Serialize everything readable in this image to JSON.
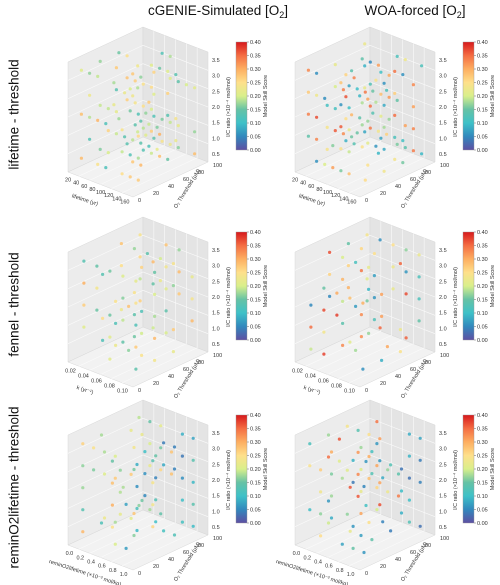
{
  "columns": [
    {
      "label": "cGENIE-Simulated [O",
      "sub": "2",
      "close": "]"
    },
    {
      "label": "WOA-forced [O",
      "sub": "2",
      "close": "]"
    }
  ],
  "rows": [
    "lifetime - threshold",
    "fennel - threshold",
    "reminO2lifetime - threshold"
  ],
  "colorbar": {
    "label": "Model Skill Score",
    "ticks": [
      "0.40",
      "0.35",
      "0.30",
      "0.25",
      "0.20",
      "0.15",
      "0.10",
      "0.05",
      "0.00"
    ],
    "colors": [
      "#d7191c",
      "#f46d43",
      "#fdae61",
      "#fee08b",
      "#d9ef8b",
      "#66c2a5",
      "#3ec1c8",
      "#3288bd",
      "#5e4fa2"
    ]
  },
  "axes": {
    "z_label": "I/C ratio (×10⁻⁴ mol/mol)",
    "z_ticks": [
      "3.5",
      "3.0",
      "2.5",
      "2.0",
      "1.5",
      "1.0",
      "0.5"
    ],
    "threshold_label": "O₂ Threshold (µM)",
    "threshold_ticks": [
      "0",
      "20",
      "40",
      "60",
      "80",
      "100"
    ]
  },
  "chart_data": [
    {
      "type": "scatter",
      "row": "lifetime - threshold",
      "column": "cGENIE-Simulated [O2]",
      "x_label": "lifetime (yr)",
      "x_ticks": [
        "20",
        "40",
        "60",
        "80",
        "100",
        "120",
        "140",
        "160"
      ],
      "y_label": "O₂ Threshold (µM)",
      "z_label": "I/C ratio (×10⁻⁴ mol/mol)",
      "color_range": [
        0,
        0.4
      ],
      "skill_range_shown": [
        0.12,
        0.3
      ]
    },
    {
      "type": "scatter",
      "row": "lifetime - threshold",
      "column": "WOA-forced [O2]",
      "x_label": "lifetime (yr)",
      "x_ticks": [
        "20",
        "40",
        "60",
        "80",
        "100",
        "120",
        "140",
        "160"
      ],
      "y_label": "O₂ Threshold (µM)",
      "z_label": "I/C ratio (×10⁻⁴ mol/mol)",
      "color_range": [
        0,
        0.4
      ],
      "skill_range_shown": [
        0.05,
        0.38
      ]
    },
    {
      "type": "scatter",
      "row": "fennel - threshold",
      "column": "cGENIE-Simulated [O2]",
      "x_label": "k (yr⁻¹)",
      "x_ticks": [
        "0.02",
        "0.04",
        "0.06",
        "0.08",
        "0.10"
      ],
      "y_label": "O₂ Threshold (µM)",
      "z_label": "I/C ratio (×10⁻⁴ mol/mol)",
      "color_range": [
        0,
        0.4
      ],
      "skill_range_shown": [
        0.12,
        0.3
      ]
    },
    {
      "type": "scatter",
      "row": "fennel - threshold",
      "column": "WOA-forced [O2]",
      "x_label": "k (yr⁻¹)",
      "x_ticks": [
        "0.02",
        "0.04",
        "0.06",
        "0.08",
        "0.10"
      ],
      "y_label": "O₂ Threshold (µM)",
      "z_label": "I/C ratio (×10⁻⁴ mol/mol)",
      "color_range": [
        0,
        0.4
      ],
      "skill_range_shown": [
        0.05,
        0.38
      ]
    },
    {
      "type": "scatter",
      "row": "reminO2lifetime - threshold",
      "column": "cGENIE-Simulated [O2]",
      "x_label": "reminO2lifetime (×10⁻³ mol/kg)",
      "x_ticks": [
        "0.0",
        "0.2",
        "0.4",
        "0.6",
        "0.8",
        "1.0"
      ],
      "y_label": "O₂ Threshold (µM)",
      "z_label": "I/C ratio (×10⁻⁴ mol/mol)",
      "color_range": [
        0,
        0.4
      ],
      "skill_range_shown": [
        0.05,
        0.3
      ]
    },
    {
      "type": "scatter",
      "row": "reminO2lifetime - threshold",
      "column": "WOA-forced [O2]",
      "x_label": "reminO2lifetime (×10⁻³ mol/kg)",
      "x_ticks": [
        "0.0",
        "0.2",
        "0.4",
        "0.6",
        "0.8",
        "1.0"
      ],
      "y_label": "O₂ Threshold (µM)",
      "z_label": "I/C ratio (×10⁻⁴ mol/mol)",
      "color_range": [
        0,
        0.4
      ],
      "skill_range_shown": [
        0.03,
        0.38
      ]
    }
  ]
}
